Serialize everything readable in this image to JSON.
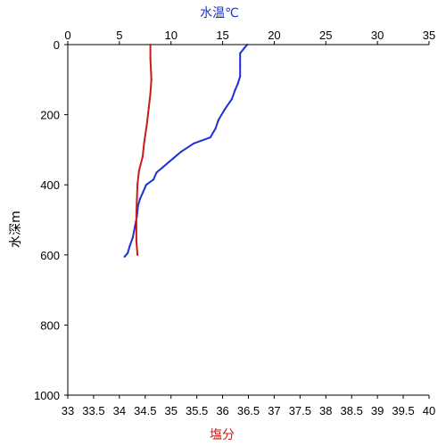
{
  "chart_data": {
    "type": "line",
    "top_axis": {
      "label": "水温℃",
      "label_color": "#1f2fd6",
      "range": [
        0,
        35
      ],
      "ticks": [
        0,
        5,
        10,
        15,
        20,
        25,
        30,
        35
      ]
    },
    "bottom_axis": {
      "label": "塩分",
      "label_color": "#cc1a1a",
      "range": [
        33,
        40
      ],
      "ticks": [
        33,
        33.5,
        34,
        34.5,
        35,
        35.5,
        36,
        36.5,
        37,
        37.5,
        38,
        38.5,
        39,
        39.5,
        40
      ],
      "tick_labels": [
        "33",
        "33.5",
        "34",
        "34.5",
        "35",
        "35.5",
        "36",
        "36.5",
        "37",
        "37.5",
        "38",
        "38.5",
        "39",
        "39.5",
        "40"
      ]
    },
    "y_axis": {
      "label": "水深m",
      "range": [
        0,
        1000
      ],
      "inverted": true,
      "ticks": [
        0,
        200,
        400,
        600,
        800,
        1000
      ]
    },
    "series": [
      {
        "key": "temperature",
        "axis": "top",
        "color": "#1f2fd6",
        "points": [
          {
            "x": 17.4,
            "y": 0
          },
          {
            "x": 17.1,
            "y": 10
          },
          {
            "x": 16.7,
            "y": 25
          },
          {
            "x": 16.7,
            "y": 60
          },
          {
            "x": 16.7,
            "y": 90
          },
          {
            "x": 16.5,
            "y": 110
          },
          {
            "x": 16.2,
            "y": 130
          },
          {
            "x": 15.9,
            "y": 155
          },
          {
            "x": 15.2,
            "y": 185
          },
          {
            "x": 14.6,
            "y": 215
          },
          {
            "x": 14.3,
            "y": 240
          },
          {
            "x": 13.8,
            "y": 265
          },
          {
            "x": 12.2,
            "y": 282
          },
          {
            "x": 11.0,
            "y": 305
          },
          {
            "x": 10.2,
            "y": 325
          },
          {
            "x": 9.2,
            "y": 350
          },
          {
            "x": 8.6,
            "y": 365
          },
          {
            "x": 8.3,
            "y": 385
          },
          {
            "x": 7.6,
            "y": 400
          },
          {
            "x": 7.3,
            "y": 420
          },
          {
            "x": 7.0,
            "y": 440
          },
          {
            "x": 6.8,
            "y": 460
          },
          {
            "x": 6.7,
            "y": 490
          },
          {
            "x": 6.5,
            "y": 520
          },
          {
            "x": 6.3,
            "y": 550
          },
          {
            "x": 6.0,
            "y": 575
          },
          {
            "x": 5.8,
            "y": 595
          },
          {
            "x": 5.5,
            "y": 605
          }
        ]
      },
      {
        "key": "salinity",
        "axis": "bottom",
        "color": "#cc1a1a",
        "points": [
          {
            "x": 34.6,
            "y": 0
          },
          {
            "x": 34.6,
            "y": 40
          },
          {
            "x": 34.62,
            "y": 100
          },
          {
            "x": 34.6,
            "y": 140
          },
          {
            "x": 34.57,
            "y": 180
          },
          {
            "x": 34.53,
            "y": 230
          },
          {
            "x": 34.48,
            "y": 280
          },
          {
            "x": 34.45,
            "y": 320
          },
          {
            "x": 34.38,
            "y": 360
          },
          {
            "x": 34.35,
            "y": 400
          },
          {
            "x": 34.34,
            "y": 440
          },
          {
            "x": 34.33,
            "y": 480
          },
          {
            "x": 34.33,
            "y": 520
          },
          {
            "x": 34.33,
            "y": 560
          },
          {
            "x": 34.35,
            "y": 600
          }
        ]
      }
    ],
    "grid": false
  }
}
